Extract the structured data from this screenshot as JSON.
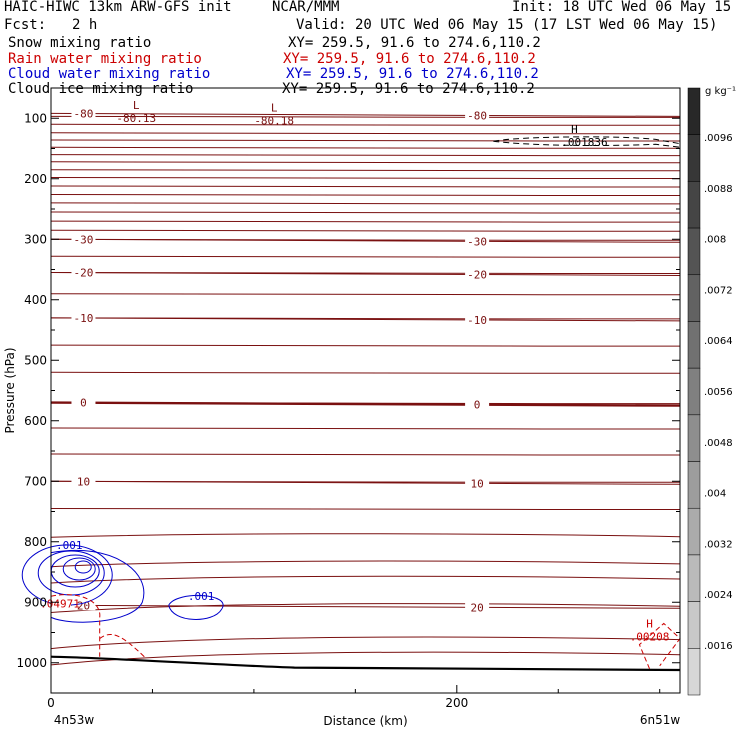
{
  "header": {
    "title": "HAIC-HIWC 13km ARW-GFS init",
    "org": "NCAR/MMM",
    "init": "Init: 18 UTC Wed 06 May 15",
    "fcst_label": "Fcst:",
    "fcst_value": "2 h",
    "valid": "Valid: 20 UTC Wed 06 May 15 (17 LST Wed 06 May 15)"
  },
  "legend": [
    {
      "label": "Snow mixing ratio",
      "xy": "XY= 259.5, 91.6 to 274.6,110.2",
      "color": "#000000"
    },
    {
      "label": "Rain water mixing ratio",
      "xy": "XY= 259.5, 91.6 to 274.6,110.2",
      "color": "#cc0000"
    },
    {
      "label": "Cloud water mixing ratio",
      "xy": "XY= 259.5, 91.6 to 274.6,110.2",
      "color": "#0000cc"
    },
    {
      "label": "Cloud ice mixing ratio",
      "xy": "XY= 259.5, 91.6 to 274.6,110.2",
      "color": "#000000"
    }
  ],
  "chart_data": {
    "type": "contour",
    "xlabel": "Distance (km)",
    "ylabel": "Pressure (hPa)",
    "x_ticks": [
      0,
      200
    ],
    "x_range": [
      0,
      310
    ],
    "y_ticks": [
      100,
      200,
      300,
      400,
      500,
      600,
      700,
      800,
      900,
      1000
    ],
    "y_range": [
      50,
      1050
    ],
    "y_scale": "linear-inverted",
    "endpoints": {
      "left": "4n53w",
      "right": "6n51w"
    },
    "temperature_contours": [
      {
        "value": -80,
        "label": "-80",
        "pressure": 92
      },
      {
        "value": -30,
        "label": "-30",
        "pressure": 300
      },
      {
        "value": -20,
        "label": "-20",
        "pressure": 355
      },
      {
        "value": -10,
        "label": "-10",
        "pressure": 430
      },
      {
        "value": 0,
        "label": "0",
        "pressure": 570,
        "emphasis": true
      },
      {
        "value": 10,
        "label": "10",
        "pressure": 700
      },
      {
        "value": 20,
        "label": "20",
        "pressure": 905
      }
    ],
    "extrema": [
      {
        "type": "L",
        "label": "L",
        "value": "-80.13",
        "x": 42,
        "p": 98
      },
      {
        "type": "L",
        "label": "L",
        "value": "-80.18",
        "x": 110,
        "p": 102
      },
      {
        "type": "H",
        "label": "H",
        "value": ".001836",
        "x": 258,
        "p": 138
      },
      {
        "type": "H",
        "label": "H",
        "value": ".00208",
        "x": 295,
        "p": 955
      }
    ],
    "cloud_water_labels": [
      ".001",
      ".001"
    ],
    "rain_label": ".04971",
    "colorbar": {
      "unit": "g kg⁻¹",
      "ticks": [
        ".0096",
        ".0088",
        ".008",
        ".0072",
        ".0064",
        ".0056",
        ".0048",
        ".004",
        ".0032",
        ".0024",
        ".0016"
      ]
    }
  }
}
